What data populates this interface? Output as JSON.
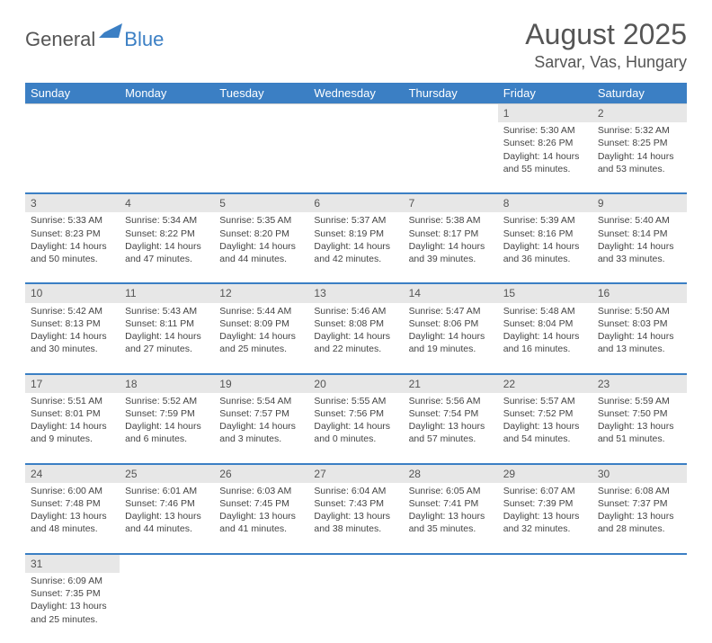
{
  "logo": {
    "part1": "General",
    "part2": "Blue"
  },
  "title": "August 2025",
  "location": "Sarvar, Vas, Hungary",
  "colors": {
    "header_bg": "#3b7fc4",
    "header_text": "#ffffff",
    "daynum_bg": "#e7e7e7",
    "divider": "#3b7fc4",
    "text": "#444444",
    "title_color": "#555555"
  },
  "fonts": {
    "title_size": 32,
    "location_size": 18,
    "dayheader_size": 13,
    "cell_size": 10.5
  },
  "day_headers": [
    "Sunday",
    "Monday",
    "Tuesday",
    "Wednesday",
    "Thursday",
    "Friday",
    "Saturday"
  ],
  "weeks": [
    [
      null,
      null,
      null,
      null,
      null,
      {
        "n": "1",
        "sr": "Sunrise: 5:30 AM",
        "ss": "Sunset: 8:26 PM",
        "d1": "Daylight: 14 hours",
        "d2": "and 55 minutes."
      },
      {
        "n": "2",
        "sr": "Sunrise: 5:32 AM",
        "ss": "Sunset: 8:25 PM",
        "d1": "Daylight: 14 hours",
        "d2": "and 53 minutes."
      }
    ],
    [
      {
        "n": "3",
        "sr": "Sunrise: 5:33 AM",
        "ss": "Sunset: 8:23 PM",
        "d1": "Daylight: 14 hours",
        "d2": "and 50 minutes."
      },
      {
        "n": "4",
        "sr": "Sunrise: 5:34 AM",
        "ss": "Sunset: 8:22 PM",
        "d1": "Daylight: 14 hours",
        "d2": "and 47 minutes."
      },
      {
        "n": "5",
        "sr": "Sunrise: 5:35 AM",
        "ss": "Sunset: 8:20 PM",
        "d1": "Daylight: 14 hours",
        "d2": "and 44 minutes."
      },
      {
        "n": "6",
        "sr": "Sunrise: 5:37 AM",
        "ss": "Sunset: 8:19 PM",
        "d1": "Daylight: 14 hours",
        "d2": "and 42 minutes."
      },
      {
        "n": "7",
        "sr": "Sunrise: 5:38 AM",
        "ss": "Sunset: 8:17 PM",
        "d1": "Daylight: 14 hours",
        "d2": "and 39 minutes."
      },
      {
        "n": "8",
        "sr": "Sunrise: 5:39 AM",
        "ss": "Sunset: 8:16 PM",
        "d1": "Daylight: 14 hours",
        "d2": "and 36 minutes."
      },
      {
        "n": "9",
        "sr": "Sunrise: 5:40 AM",
        "ss": "Sunset: 8:14 PM",
        "d1": "Daylight: 14 hours",
        "d2": "and 33 minutes."
      }
    ],
    [
      {
        "n": "10",
        "sr": "Sunrise: 5:42 AM",
        "ss": "Sunset: 8:13 PM",
        "d1": "Daylight: 14 hours",
        "d2": "and 30 minutes."
      },
      {
        "n": "11",
        "sr": "Sunrise: 5:43 AM",
        "ss": "Sunset: 8:11 PM",
        "d1": "Daylight: 14 hours",
        "d2": "and 27 minutes."
      },
      {
        "n": "12",
        "sr": "Sunrise: 5:44 AM",
        "ss": "Sunset: 8:09 PM",
        "d1": "Daylight: 14 hours",
        "d2": "and 25 minutes."
      },
      {
        "n": "13",
        "sr": "Sunrise: 5:46 AM",
        "ss": "Sunset: 8:08 PM",
        "d1": "Daylight: 14 hours",
        "d2": "and 22 minutes."
      },
      {
        "n": "14",
        "sr": "Sunrise: 5:47 AM",
        "ss": "Sunset: 8:06 PM",
        "d1": "Daylight: 14 hours",
        "d2": "and 19 minutes."
      },
      {
        "n": "15",
        "sr": "Sunrise: 5:48 AM",
        "ss": "Sunset: 8:04 PM",
        "d1": "Daylight: 14 hours",
        "d2": "and 16 minutes."
      },
      {
        "n": "16",
        "sr": "Sunrise: 5:50 AM",
        "ss": "Sunset: 8:03 PM",
        "d1": "Daylight: 14 hours",
        "d2": "and 13 minutes."
      }
    ],
    [
      {
        "n": "17",
        "sr": "Sunrise: 5:51 AM",
        "ss": "Sunset: 8:01 PM",
        "d1": "Daylight: 14 hours",
        "d2": "and 9 minutes."
      },
      {
        "n": "18",
        "sr": "Sunrise: 5:52 AM",
        "ss": "Sunset: 7:59 PM",
        "d1": "Daylight: 14 hours",
        "d2": "and 6 minutes."
      },
      {
        "n": "19",
        "sr": "Sunrise: 5:54 AM",
        "ss": "Sunset: 7:57 PM",
        "d1": "Daylight: 14 hours",
        "d2": "and 3 minutes."
      },
      {
        "n": "20",
        "sr": "Sunrise: 5:55 AM",
        "ss": "Sunset: 7:56 PM",
        "d1": "Daylight: 14 hours",
        "d2": "and 0 minutes."
      },
      {
        "n": "21",
        "sr": "Sunrise: 5:56 AM",
        "ss": "Sunset: 7:54 PM",
        "d1": "Daylight: 13 hours",
        "d2": "and 57 minutes."
      },
      {
        "n": "22",
        "sr": "Sunrise: 5:57 AM",
        "ss": "Sunset: 7:52 PM",
        "d1": "Daylight: 13 hours",
        "d2": "and 54 minutes."
      },
      {
        "n": "23",
        "sr": "Sunrise: 5:59 AM",
        "ss": "Sunset: 7:50 PM",
        "d1": "Daylight: 13 hours",
        "d2": "and 51 minutes."
      }
    ],
    [
      {
        "n": "24",
        "sr": "Sunrise: 6:00 AM",
        "ss": "Sunset: 7:48 PM",
        "d1": "Daylight: 13 hours",
        "d2": "and 48 minutes."
      },
      {
        "n": "25",
        "sr": "Sunrise: 6:01 AM",
        "ss": "Sunset: 7:46 PM",
        "d1": "Daylight: 13 hours",
        "d2": "and 44 minutes."
      },
      {
        "n": "26",
        "sr": "Sunrise: 6:03 AM",
        "ss": "Sunset: 7:45 PM",
        "d1": "Daylight: 13 hours",
        "d2": "and 41 minutes."
      },
      {
        "n": "27",
        "sr": "Sunrise: 6:04 AM",
        "ss": "Sunset: 7:43 PM",
        "d1": "Daylight: 13 hours",
        "d2": "and 38 minutes."
      },
      {
        "n": "28",
        "sr": "Sunrise: 6:05 AM",
        "ss": "Sunset: 7:41 PM",
        "d1": "Daylight: 13 hours",
        "d2": "and 35 minutes."
      },
      {
        "n": "29",
        "sr": "Sunrise: 6:07 AM",
        "ss": "Sunset: 7:39 PM",
        "d1": "Daylight: 13 hours",
        "d2": "and 32 minutes."
      },
      {
        "n": "30",
        "sr": "Sunrise: 6:08 AM",
        "ss": "Sunset: 7:37 PM",
        "d1": "Daylight: 13 hours",
        "d2": "and 28 minutes."
      }
    ],
    [
      {
        "n": "31",
        "sr": "Sunrise: 6:09 AM",
        "ss": "Sunset: 7:35 PM",
        "d1": "Daylight: 13 hours",
        "d2": "and 25 minutes."
      },
      null,
      null,
      null,
      null,
      null,
      null
    ]
  ]
}
